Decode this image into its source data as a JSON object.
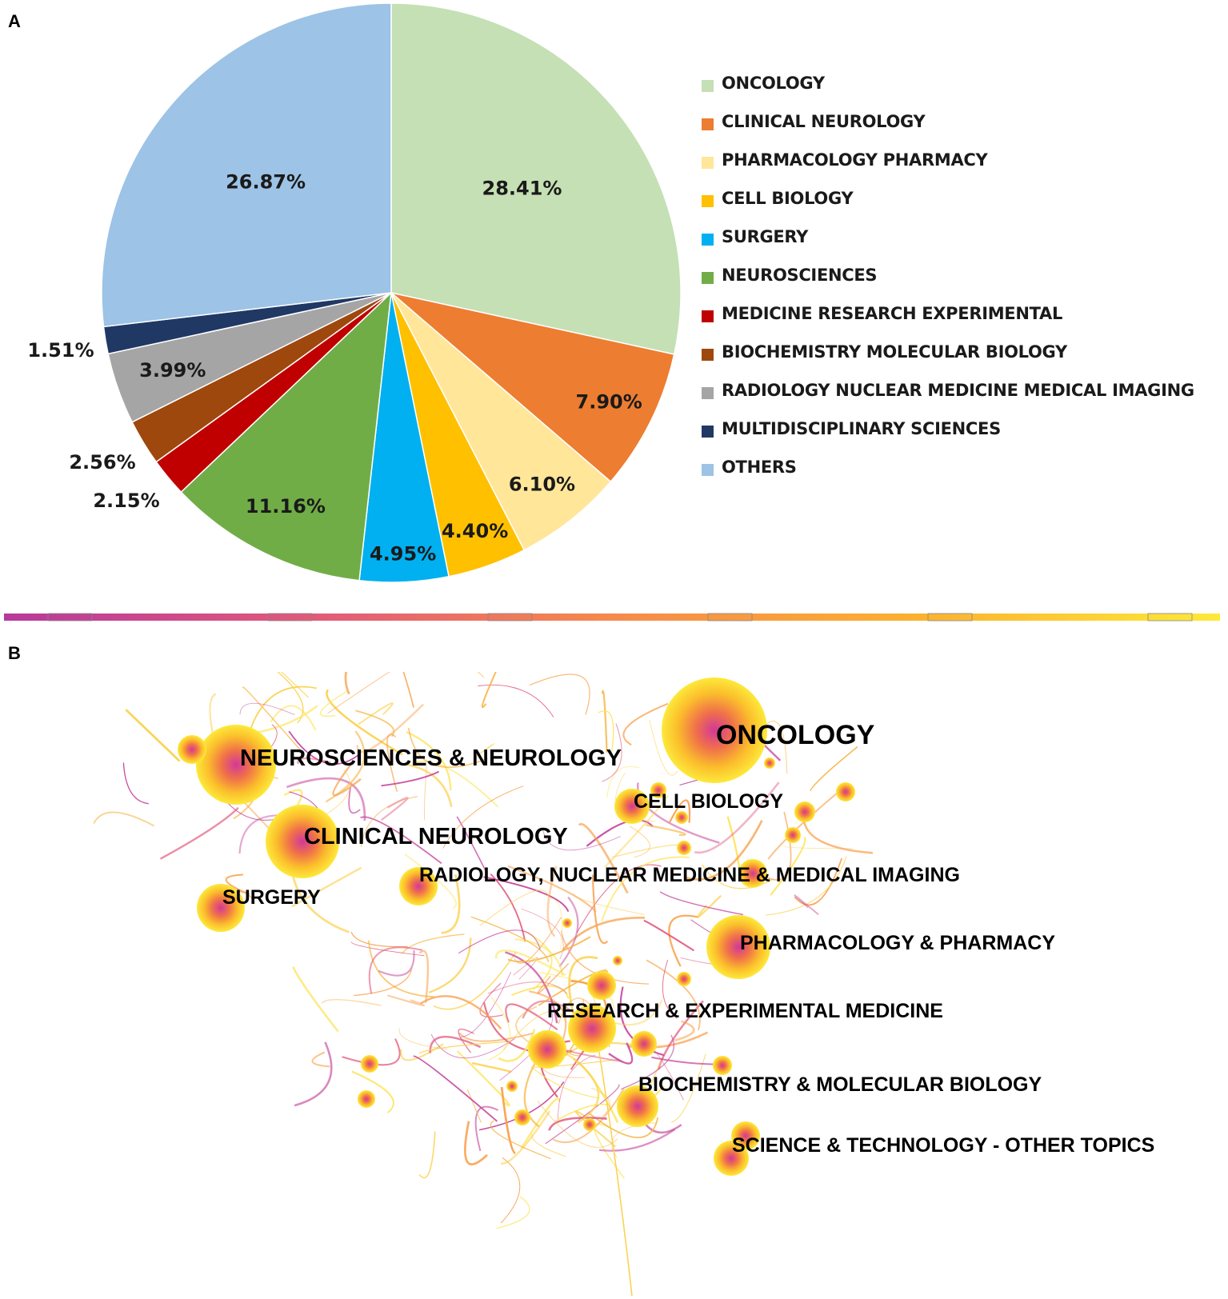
{
  "panels": {
    "a": "A",
    "b": "B"
  },
  "chart_data": [
    {
      "type": "pie",
      "title": "",
      "slices": [
        {
          "label": "ONCOLOGY",
          "value": 28.41,
          "display": "28.41%",
          "color": "#c5e0b4"
        },
        {
          "label": "CLINICAL NEUROLOGY",
          "value": 7.9,
          "display": "7.90%",
          "color": "#ed7d31"
        },
        {
          "label": "PHARMACOLOGY PHARMACY",
          "value": 6.1,
          "display": "6.10%",
          "color": "#ffe699"
        },
        {
          "label": "CELL BIOLOGY",
          "value": 4.4,
          "display": "4.40%",
          "color": "#ffc000"
        },
        {
          "label": "SURGERY",
          "value": 4.95,
          "display": "4.95%",
          "color": "#00b0f0"
        },
        {
          "label": "NEUROSCIENCES",
          "value": 11.16,
          "display": "11.16%",
          "color": "#70ad47"
        },
        {
          "label": "MEDICINE RESEARCH EXPERIMENTAL",
          "value": 2.15,
          "display": "2.15%",
          "color": "#c00000"
        },
        {
          "label": "BIOCHEMISTRY MOLECULAR BIOLOGY",
          "value": 2.56,
          "display": "2.56%",
          "color": "#9e480e"
        },
        {
          "label": "RADIOLOGY NUCLEAR MEDICINE MEDICAL IMAGING",
          "value": 3.99,
          "display": "3.99%",
          "color": "#a5a5a5"
        },
        {
          "label": "MULTIDISCIPLINARY SCIENCES",
          "value": 1.51,
          "display": "1.51%",
          "color": "#203864"
        },
        {
          "label": "OTHERS",
          "value": 26.87,
          "display": "26.87%",
          "color": "#9dc3e6"
        }
      ],
      "legend_position": "right"
    },
    {
      "type": "network",
      "title": "",
      "node_labels": [
        "ONCOLOGY",
        "NEUROSCIENCES & NEUROLOGY",
        "CELL BIOLOGY",
        "CLINICAL NEUROLOGY",
        "RADIOLOGY, NUCLEAR MEDICINE & MEDICAL IMAGING",
        "SURGERY",
        "PHARMACOLOGY & PHARMACY",
        "RESEARCH & EXPERIMENTAL MEDICINE",
        "BIOCHEMISTRY & MOLECULAR BIOLOGY",
        "SCIENCE & TECHNOLOGY - OTHER TOPICS"
      ],
      "timeline_colors": [
        "#b7399c",
        "#e05a7a",
        "#f58a4c",
        "#fbb030",
        "#fde93a"
      ]
    }
  ]
}
